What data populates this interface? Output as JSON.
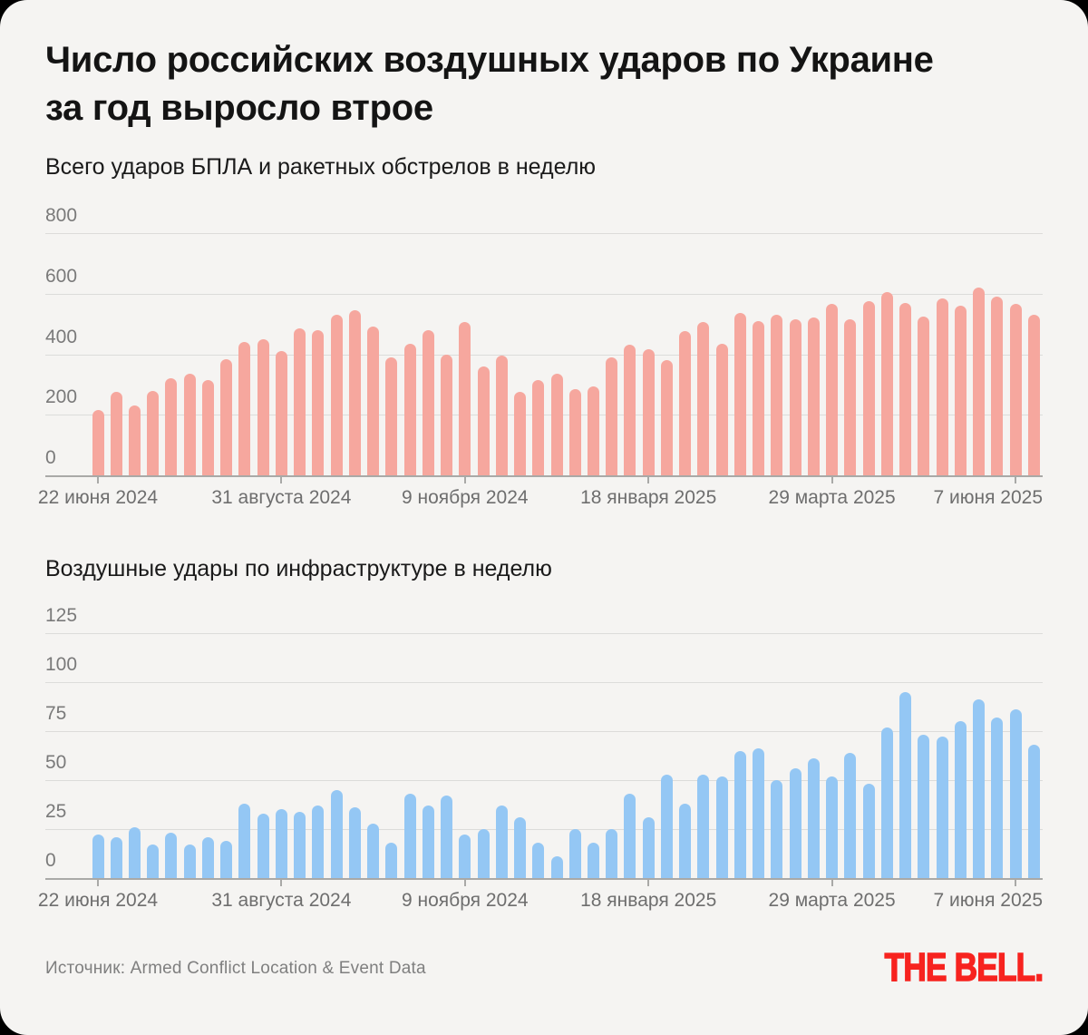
{
  "header": {
    "title_line1": "Число российских воздушных ударов по Украине",
    "title_line2": "за год выросло втрое"
  },
  "chart_data": [
    {
      "type": "bar",
      "title": "Всего ударов БПЛА и ракетных обстрелов в неделю",
      "color": "#f6a79e",
      "ylim": [
        0,
        800
      ],
      "y_ticks": [
        0,
        200,
        400,
        600,
        800
      ],
      "grid": true,
      "legend": "none",
      "x_tick_labels": [
        "22 июня 2024",
        "31 августа 2024",
        "9 ноября 2024",
        "18 января 2025",
        "29 марта 2025",
        "7 июня 2025"
      ],
      "x_tick_indices": [
        0,
        10,
        20,
        30,
        40,
        50
      ],
      "values": [
        215,
        275,
        230,
        280,
        320,
        335,
        315,
        385,
        440,
        450,
        410,
        485,
        480,
        530,
        545,
        490,
        390,
        435,
        480,
        400,
        505,
        360,
        395,
        275,
        315,
        335,
        285,
        295,
        390,
        430,
        415,
        380,
        475,
        505,
        435,
        535,
        510,
        530,
        515,
        520,
        565,
        515,
        575,
        605,
        570,
        525,
        585,
        560,
        620,
        590,
        565,
        530
      ]
    },
    {
      "type": "bar",
      "title": "Воздушные удары по инфраструктуре в неделю",
      "color": "#94c7f4",
      "ylim": [
        0,
        125
      ],
      "y_ticks": [
        0,
        25,
        50,
        75,
        100,
        125
      ],
      "grid": true,
      "legend": "none",
      "x_tick_labels": [
        "22 июня 2024",
        "31 августа 2024",
        "9 ноября 2024",
        "18 января 2025",
        "29 марта 2025",
        "7 июня 2025"
      ],
      "x_tick_indices": [
        0,
        10,
        20,
        30,
        40,
        50
      ],
      "values": [
        22,
        21,
        26,
        17,
        23,
        17,
        21,
        19,
        38,
        33,
        35,
        34,
        37,
        45,
        36,
        28,
        18,
        43,
        37,
        42,
        22,
        25,
        37,
        31,
        18,
        11,
        25,
        18,
        25,
        43,
        31,
        53,
        38,
        53,
        52,
        65,
        66,
        50,
        56,
        61,
        52,
        64,
        48,
        77,
        95,
        73,
        72,
        80,
        91,
        82,
        86,
        68
      ]
    }
  ],
  "footer": {
    "source": "Источник: Armed Conflict Location & Event Data",
    "logo": "THE BELL."
  },
  "colors": {
    "card_background": "#f5f4f2",
    "outer_background": "#000000",
    "bars_total": "#f6a79e",
    "bars_infrastructure": "#94c7f4",
    "gridline": "#dcdcda",
    "axis": "#a9a9a7",
    "y_label": "#7a7a7a",
    "x_label": "#6e6e6e",
    "title": "#141414",
    "source": "#7f7f7f",
    "logo_red": "#f7231f"
  }
}
